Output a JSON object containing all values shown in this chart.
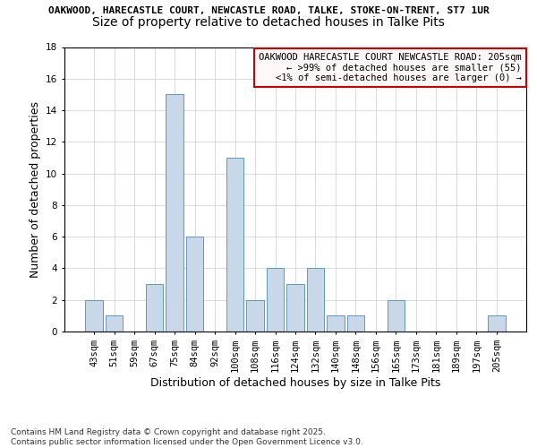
{
  "title_line1": "OAKWOOD, HARECASTLE COURT, NEWCASTLE ROAD, TALKE, STOKE-ON-TRENT, ST7 1UR",
  "title_line2": "Size of property relative to detached houses in Talke Pits",
  "xlabel": "Distribution of detached houses by size in Talke Pits",
  "ylabel": "Number of detached properties",
  "bar_labels": [
    "43sqm",
    "51sqm",
    "59sqm",
    "67sqm",
    "75sqm",
    "84sqm",
    "92sqm",
    "100sqm",
    "108sqm",
    "116sqm",
    "124sqm",
    "132sqm",
    "140sqm",
    "148sqm",
    "156sqm",
    "165sqm",
    "173sqm",
    "181sqm",
    "189sqm",
    "197sqm",
    "205sqm"
  ],
  "bar_heights": [
    2,
    1,
    0,
    3,
    15,
    6,
    0,
    11,
    2,
    4,
    3,
    4,
    1,
    1,
    0,
    2,
    0,
    0,
    0,
    0,
    1
  ],
  "bar_color": "#c8d8e8",
  "bar_edge_color": "#5a9abf",
  "ylim": [
    0,
    18
  ],
  "yticks": [
    0,
    2,
    4,
    6,
    8,
    10,
    12,
    14,
    16,
    18
  ],
  "annotation_box_text_line1": "OAKWOOD HARECASTLE COURT NEWCASTLE ROAD: 205sqm",
  "annotation_box_text_line2": "← >99% of detached houses are smaller (55)",
  "annotation_box_text_line3": "<1% of semi-detached houses are larger (0) →",
  "annotation_box_facecolor": "#fff8f8",
  "annotation_box_edgecolor": "#cc0000",
  "grid_color": "#cccccc",
  "background_color": "#ffffff",
  "footer_text": "Contains HM Land Registry data © Crown copyright and database right 2025.\nContains public sector information licensed under the Open Government Licence v3.0.",
  "title_fontsize": 8,
  "subtitle_fontsize": 10,
  "axis_label_fontsize": 9,
  "tick_fontsize": 7.5,
  "annotation_fontsize": 7.5,
  "footer_fontsize": 6.5
}
